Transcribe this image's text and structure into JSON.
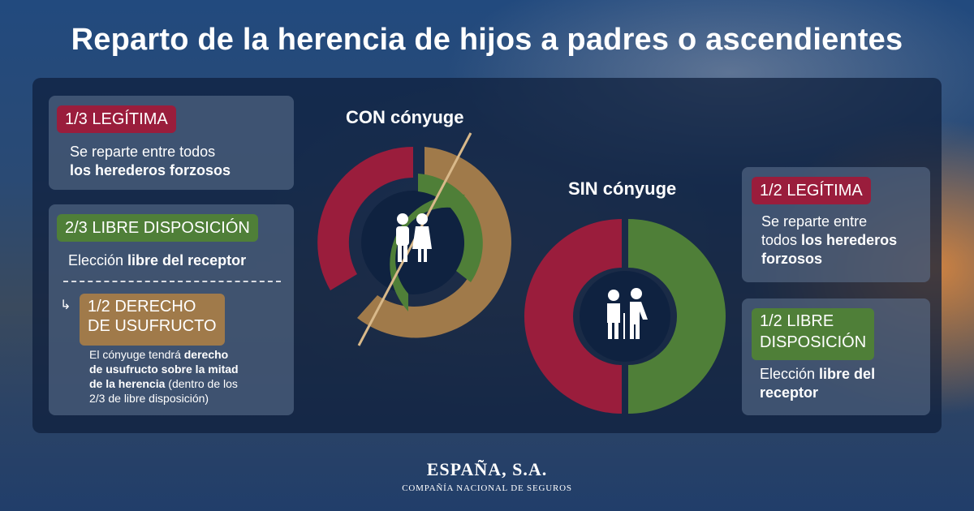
{
  "title": "Reparto de la herencia de hijos a padres o ascendientes",
  "left": {
    "legitima": {
      "label": "1/3 LEGÍTIMA",
      "line1": "Se reparte entre todos",
      "line2_bold": "los herederos forzosos"
    },
    "libre": {
      "label": "2/3 LIBRE DISPOSICIÓN",
      "text_plain": "Elección ",
      "text_bold": "libre del receptor"
    },
    "usufructo": {
      "label_line1": "1/2 DERECHO",
      "label_line2": "DE USUFRUCTO",
      "p1": "El cónyuge tendrá ",
      "b1": "derecho",
      "b2": "de usufructo sobre la mitad",
      "b3": "de la herencia",
      "p2": " (dentro de los",
      "p3": "2/3 de libre disposición)"
    }
  },
  "con_conyuge": {
    "label": "CON cónyuge",
    "icon": "couple-icon",
    "outer_ring": [
      {
        "share": "1/3",
        "color": "#9a1d3c"
      },
      {
        "share": "2/3",
        "color": "#a07a4a"
      }
    ],
    "inner_ring": {
      "share": "1/2",
      "color": "#4f7f38"
    }
  },
  "sin_conyuge": {
    "label": "SIN cónyuge",
    "icon": "elderly-couple-icon",
    "ring": [
      {
        "share": "1/2",
        "color": "#9a1d3c"
      },
      {
        "share": "1/2",
        "color": "#4f7f38"
      }
    ]
  },
  "right": {
    "legitima": {
      "label": "1/2 LEGÍTIMA",
      "line1": "Se reparte entre",
      "line2_plain": "todos ",
      "line2_bold": "los herederos",
      "line3_bold": "forzosos"
    },
    "libre": {
      "label_line1": "1/2 LIBRE",
      "label_line2": "DISPOSICIÓN",
      "text_plain": "Elección ",
      "text_bold1": "libre del",
      "text_bold2": "receptor"
    }
  },
  "brand": {
    "name": "ESPAÑA, S.A.",
    "tagline": "COMPAÑÍA NACIONAL DE SEGUROS"
  }
}
